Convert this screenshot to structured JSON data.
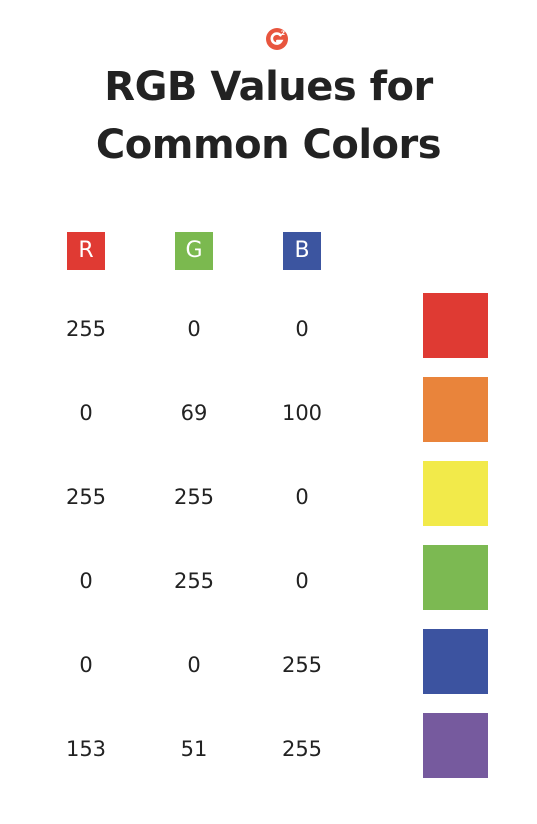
{
  "logo": {
    "icon": "g2-logo-icon",
    "color": "#e8553e"
  },
  "title": {
    "line1": "RGB Values for",
    "line2": "Common Colors"
  },
  "headers": [
    {
      "label": "R",
      "color": "#e03a33"
    },
    {
      "label": "G",
      "color": "#7bb94f"
    },
    {
      "label": "B",
      "color": "#3c55a0"
    }
  ],
  "rows": [
    {
      "r": "255",
      "g": "0",
      "b": "0",
      "swatch": "#df3a33"
    },
    {
      "r": "0",
      "g": "69",
      "b": "100",
      "swatch": "#e9843b"
    },
    {
      "r": "255",
      "g": "255",
      "b": "0",
      "swatch": "#f2ea4a"
    },
    {
      "r": "0",
      "g": "255",
      "b": "0",
      "swatch": "#7cb952"
    },
    {
      "r": "0",
      "g": "0",
      "b": "255",
      "swatch": "#3c53a0"
    },
    {
      "r": "153",
      "g": "51",
      "b": "255",
      "swatch": "#765a9e"
    }
  ]
}
